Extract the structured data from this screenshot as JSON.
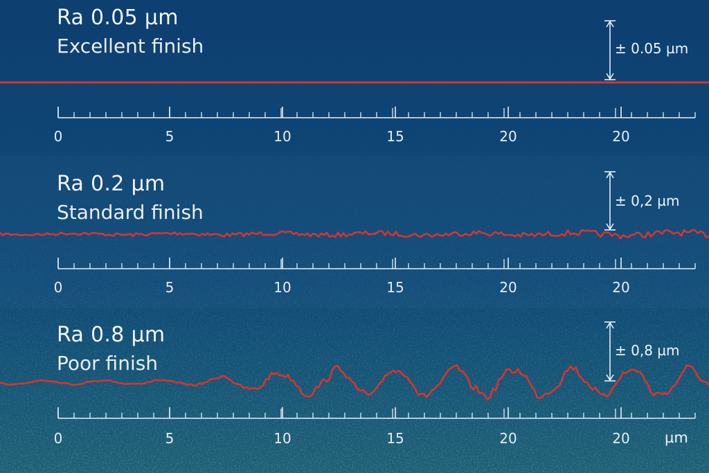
{
  "panels": [
    {
      "title": "Ra 0.05 µm",
      "subtitle": "Excellent finish",
      "tolerance": "± 0.05 µm",
      "amplitude": 0.05,
      "scale_ticks": [
        "0",
        "5",
        "10",
        "15",
        "20",
        "20"
      ]
    },
    {
      "title": "Ra 0.2 µm",
      "subtitle": "Standard finish",
      "tolerance": "± 0,2 µm",
      "amplitude": 0.2,
      "scale_ticks": [
        "0",
        "5",
        "10",
        "15",
        "20",
        "20"
      ]
    },
    {
      "title": "Ra 0.8 µm",
      "subtitle": "Poor finish",
      "tolerance": "± 0,8 µm",
      "amplitude": 0.8,
      "scale_ticks": [
        "0",
        "5",
        "10",
        "15",
        "20",
        "20"
      ]
    }
  ],
  "unit_label": "µm",
  "colors": {
    "background_top": "#0d3f70",
    "background_bottom": "#1c5a7a",
    "profile": "#d8342c",
    "text": "#f3f6fa",
    "scale": "#e8eef5"
  }
}
